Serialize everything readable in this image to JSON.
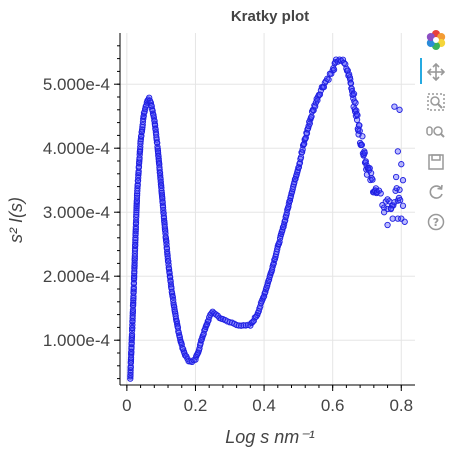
{
  "chart_data": {
    "type": "scatter",
    "title": "Kratky plot",
    "xlabel": "Log s nm⁻¹",
    "ylabel": "s² I(s)",
    "xlim": [
      -0.02,
      0.84
    ],
    "ylim": [
      3e-05,
      0.00058
    ],
    "x_ticks": [
      0,
      0.2,
      0.4,
      0.6,
      0.8
    ],
    "x_tick_labels": [
      "0",
      "0.2",
      "0.4",
      "0.6",
      "0.8"
    ],
    "y_ticks": [
      0.0001,
      0.0002,
      0.0003,
      0.0004,
      0.0005
    ],
    "y_tick_labels": [
      "1.000e-4",
      "2.000e-4",
      "3.000e-4",
      "4.000e-4",
      "5.000e-4"
    ],
    "grid": true,
    "marker": {
      "fill": "#3b3bff",
      "fill_opacity": 0.35,
      "stroke": "#1f1fe0"
    },
    "curve_keypoints": [
      [
        0.01,
        4e-05
      ],
      [
        0.012,
        7e-05
      ],
      [
        0.015,
        0.00011
      ],
      [
        0.02,
        0.00018
      ],
      [
        0.025,
        0.00026
      ],
      [
        0.03,
        0.00033
      ],
      [
        0.04,
        0.00041
      ],
      [
        0.05,
        0.000455
      ],
      [
        0.06,
        0.000475
      ],
      [
        0.065,
        0.000478
      ],
      [
        0.07,
        0.000472
      ],
      [
        0.08,
        0.000445
      ],
      [
        0.09,
        0.0004
      ],
      [
        0.1,
        0.00034
      ],
      [
        0.11,
        0.00028
      ],
      [
        0.12,
        0.000225
      ],
      [
        0.13,
        0.00018
      ],
      [
        0.14,
        0.000145
      ],
      [
        0.15,
        0.000115
      ],
      [
        0.16,
        9.2e-05
      ],
      [
        0.17,
        7.7e-05
      ],
      [
        0.18,
        6.8e-05
      ],
      [
        0.19,
        6.5e-05
      ],
      [
        0.2,
        7e-05
      ],
      [
        0.21,
        8.5e-05
      ],
      [
        0.22,
        0.000105
      ],
      [
        0.23,
        0.00012
      ],
      [
        0.24,
        0.000135
      ],
      [
        0.25,
        0.000145
      ],
      [
        0.26,
        0.00014
      ],
      [
        0.28,
        0.000132
      ],
      [
        0.3,
        0.000128
      ],
      [
        0.32,
        0.000125
      ],
      [
        0.34,
        0.000122
      ],
      [
        0.36,
        0.000123
      ],
      [
        0.38,
        0.00014
      ],
      [
        0.4,
        0.00017
      ],
      [
        0.42,
        0.000205
      ],
      [
        0.44,
        0.000245
      ],
      [
        0.46,
        0.000285
      ],
      [
        0.48,
        0.00033
      ],
      [
        0.5,
        0.00037
      ],
      [
        0.52,
        0.000415
      ],
      [
        0.54,
        0.000455
      ],
      [
        0.56,
        0.000485
      ],
      [
        0.58,
        0.000505
      ],
      [
        0.6,
        0.00052
      ],
      [
        0.61,
        0.000535
      ],
      [
        0.62,
        0.00054
      ],
      [
        0.63,
        0.000535
      ],
      [
        0.64,
        0.000525
      ],
      [
        0.65,
        0.00051
      ],
      [
        0.66,
        0.00048
      ],
      [
        0.67,
        0.00045
      ],
      [
        0.68,
        0.00042
      ],
      [
        0.69,
        0.0004
      ],
      [
        0.7,
        0.00037
      ],
      [
        0.71,
        0.000355
      ],
      [
        0.72,
        0.00034
      ],
      [
        0.73,
        0.000325
      ],
      [
        0.74,
        0.00032
      ],
      [
        0.75,
        0.000315
      ],
      [
        0.76,
        0.00031
      ],
      [
        0.77,
        0.00031
      ],
      [
        0.78,
        0.00032
      ],
      [
        0.79,
        0.00033
      ],
      [
        0.8,
        0.00032
      ]
    ],
    "scattered_points": [
      [
        0.78,
        0.000465
      ],
      [
        0.795,
        0.00046
      ],
      [
        0.79,
        0.000395
      ],
      [
        0.8,
        0.000375
      ],
      [
        0.785,
        0.000355
      ],
      [
        0.805,
        0.00035
      ],
      [
        0.795,
        0.000335
      ],
      [
        0.76,
        0.00028
      ],
      [
        0.775,
        0.00029
      ],
      [
        0.79,
        0.00029
      ],
      [
        0.8,
        0.00029
      ],
      [
        0.81,
        0.000285
      ],
      [
        0.77,
        0.000305
      ],
      [
        0.805,
        0.00031
      ],
      [
        0.75,
        0.0003
      ],
      [
        0.76,
        0.00032
      ]
    ]
  },
  "toolbar": {
    "logo": "bokeh-logo-icon",
    "tools": [
      "pan-icon",
      "box-zoom-icon",
      "wheel-zoom-icon",
      "save-icon",
      "reset-icon",
      "help-icon"
    ]
  }
}
